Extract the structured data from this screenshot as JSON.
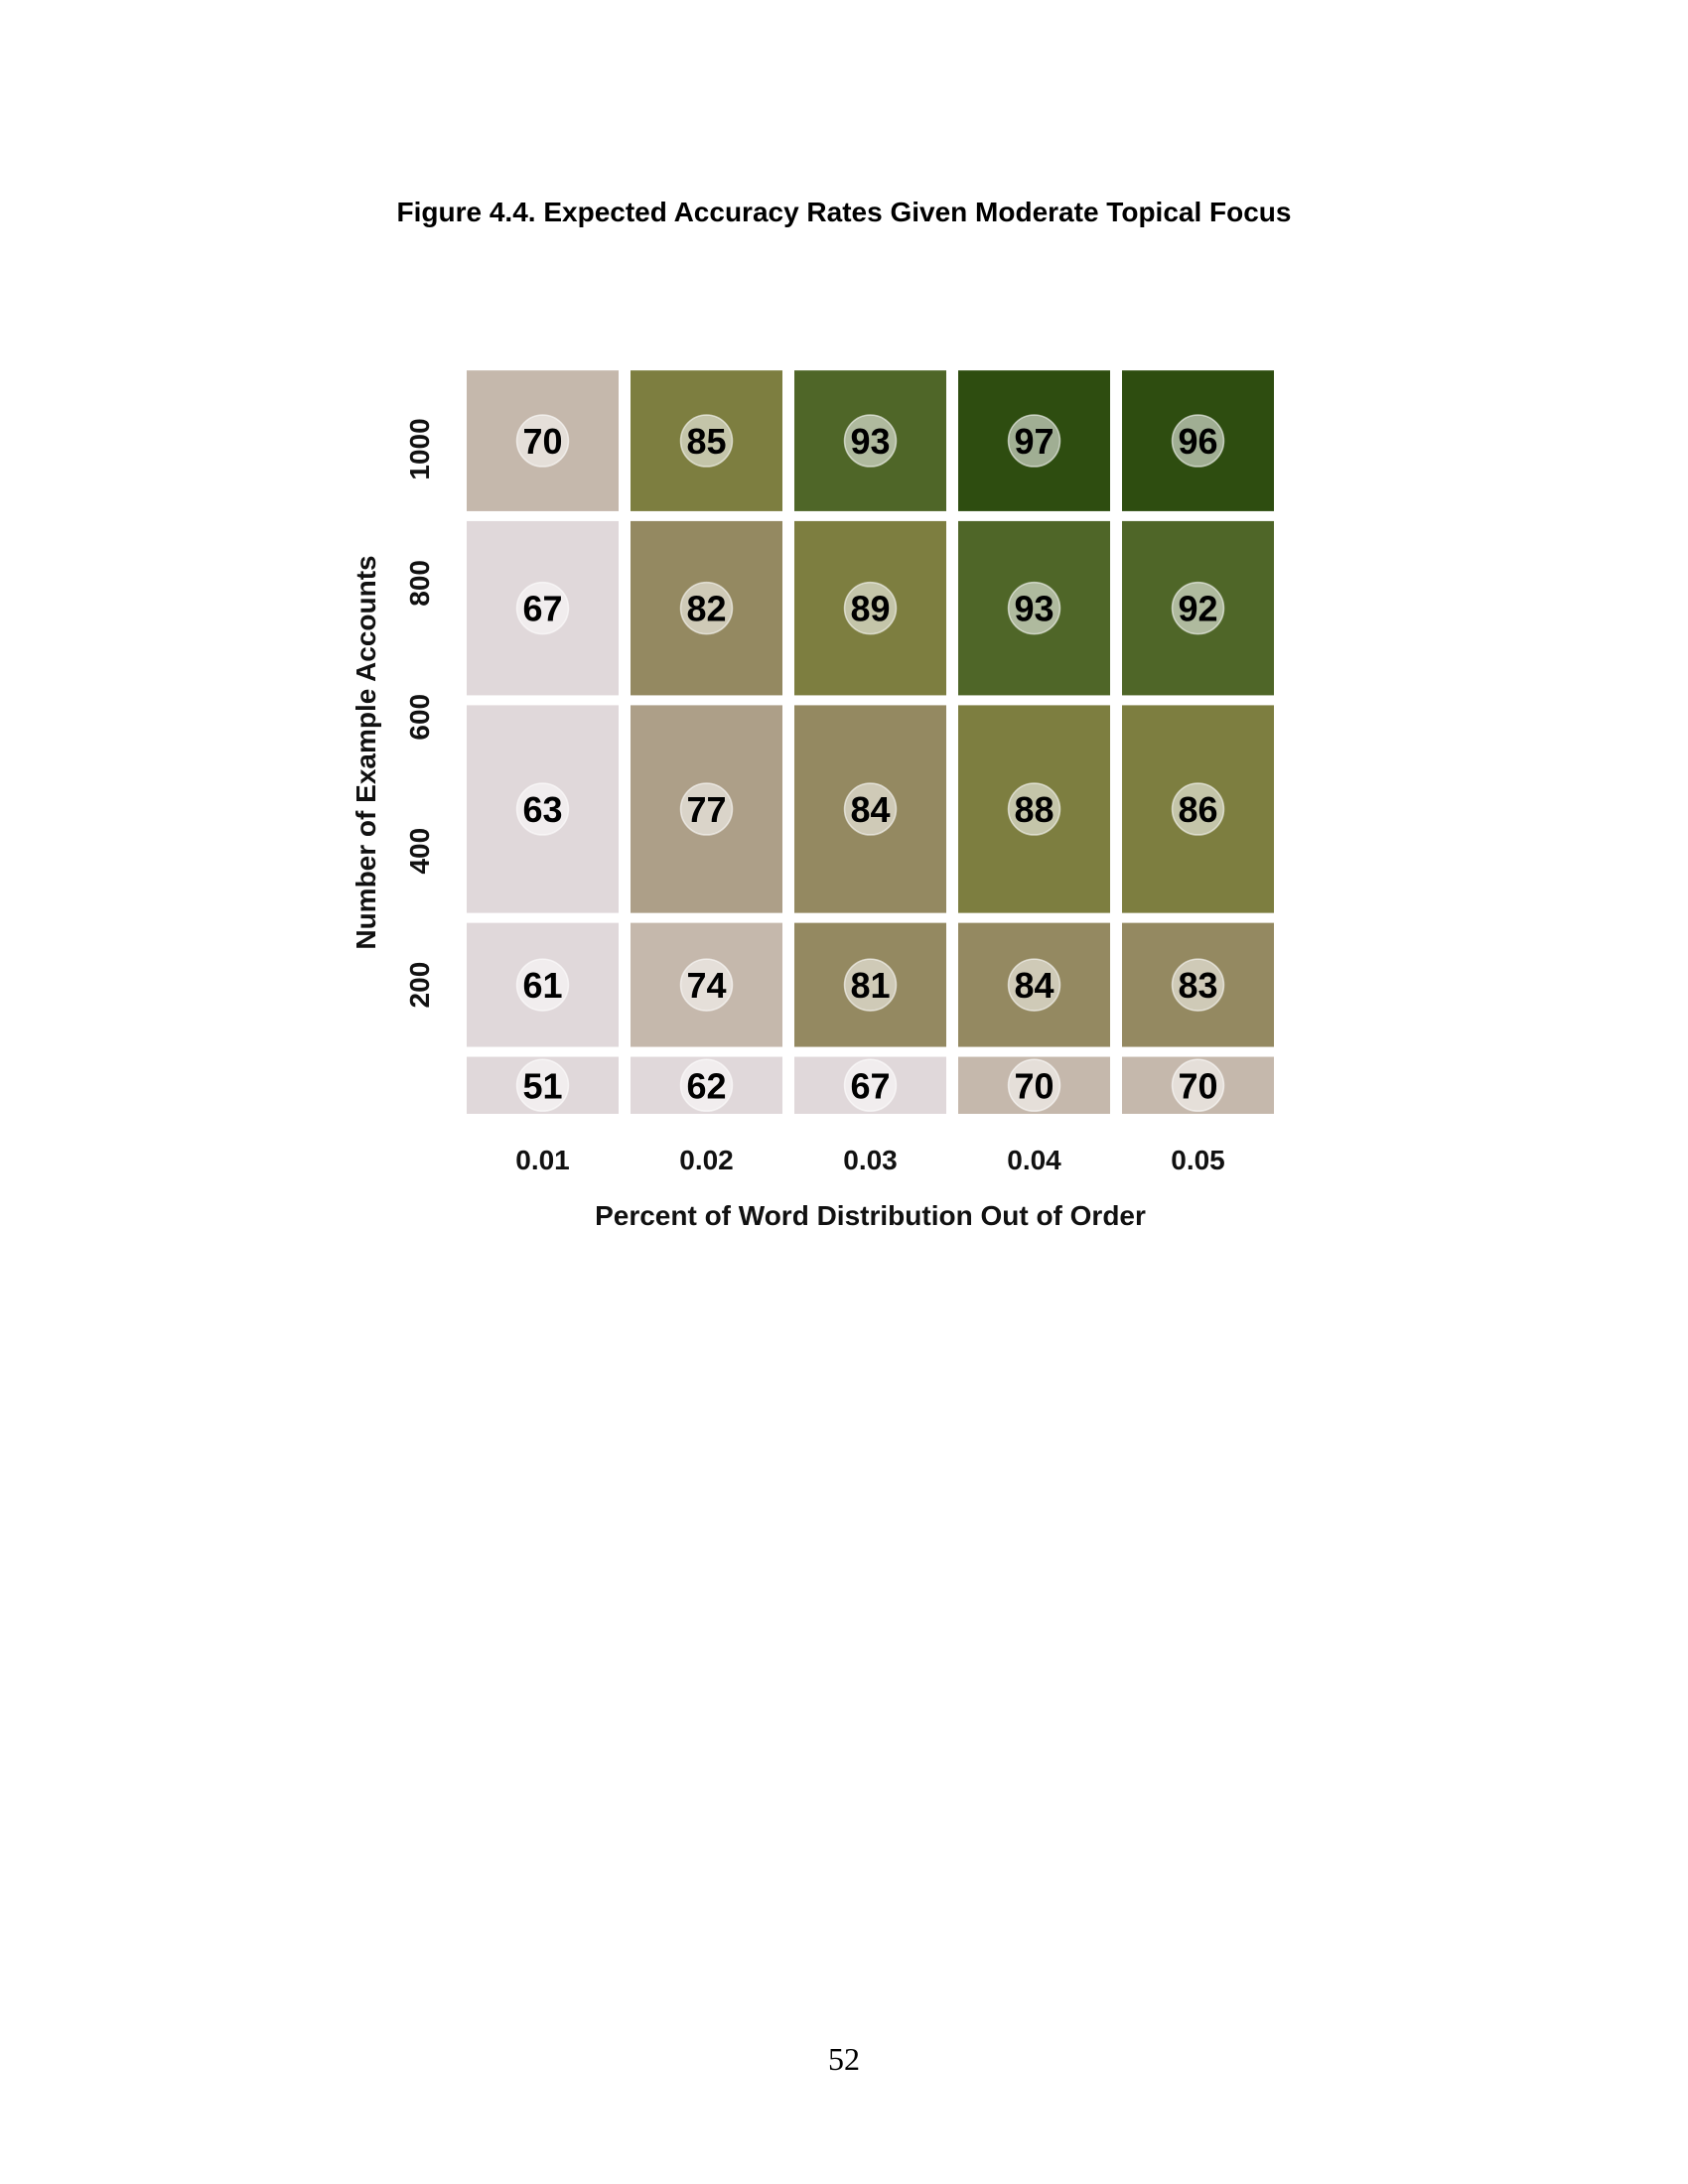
{
  "page": {
    "figure_title": "Figure 4.4. Expected Accuracy Rates Given Moderate Topical Focus",
    "page_number": "52"
  },
  "chart_data": {
    "type": "heatmap",
    "title": "Figure 4.4. Expected Accuracy Rates Given Moderate Topical Focus",
    "xlabel": "Percent of Word Distribution Out of Order",
    "ylabel": "Number of Example Accounts",
    "x_categories": [
      "0.01",
      "0.02",
      "0.03",
      "0.04",
      "0.05"
    ],
    "y_range": [
      0,
      1100
    ],
    "y_ticks": [
      200,
      400,
      600,
      800,
      1000
    ],
    "y_tick_labels": [
      "200",
      "400",
      "600",
      "800",
      "1000"
    ],
    "row_bands": [
      {
        "from": 0,
        "to": 100
      },
      {
        "from": 100,
        "to": 300
      },
      {
        "from": 300,
        "to": 625
      },
      {
        "from": 625,
        "to": 900
      },
      {
        "from": 900,
        "to": 1125
      }
    ],
    "values": [
      [
        51,
        62,
        67,
        70,
        70
      ],
      [
        61,
        74,
        81,
        84,
        83
      ],
      [
        63,
        77,
        84,
        88,
        86
      ],
      [
        67,
        82,
        89,
        93,
        92
      ],
      [
        70,
        85,
        93,
        97,
        96
      ]
    ],
    "color_scale": [
      {
        "max": 69,
        "color": "#e0d8da"
      },
      {
        "max": 76,
        "color": "#c5b8ac"
      },
      {
        "max": 79,
        "color": "#ad9f88"
      },
      {
        "max": 84,
        "color": "#948961"
      },
      {
        "max": 89,
        "color": "#7d7e40"
      },
      {
        "max": 95,
        "color": "#4f6628"
      },
      {
        "max": 100,
        "color": "#2e4d10"
      }
    ],
    "grid": false,
    "legend": "none"
  }
}
